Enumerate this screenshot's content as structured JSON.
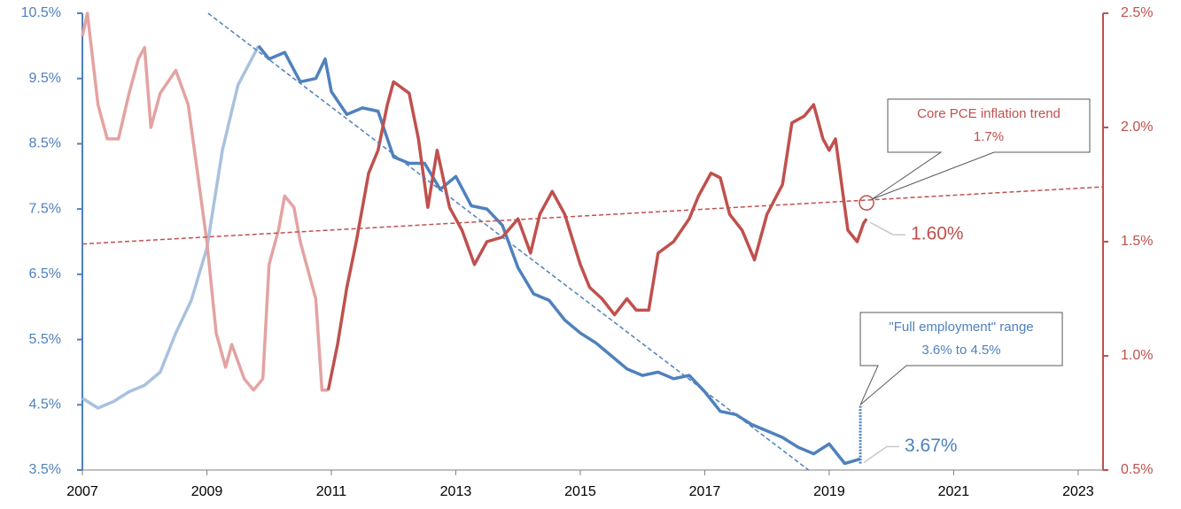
{
  "chart_data": {
    "type": "line",
    "xlim": [
      2007,
      2023.4
    ],
    "xticks": [
      2007,
      2009,
      2011,
      2013,
      2015,
      2017,
      2019,
      2021,
      2023
    ],
    "ylim": [
      3.5,
      10.5
    ],
    "yticks": [
      {
        "value": 3.5,
        "label": "3.5%"
      },
      {
        "value": 4.5,
        "label": "4.5%"
      },
      {
        "value": 5.5,
        "label": "5.5%"
      },
      {
        "value": 6.5,
        "label": "6.5%"
      },
      {
        "value": 7.5,
        "label": "7.5%"
      },
      {
        "value": 8.5,
        "label": "8.5%"
      },
      {
        "value": 9.5,
        "label": "9.5%"
      },
      {
        "value": 10.5,
        "label": "10.5%"
      }
    ],
    "y2lim": [
      0.5,
      2.5
    ],
    "y2ticks": [
      {
        "value": 0.5,
        "label": "0.5%"
      },
      {
        "value": 1.0,
        "label": "1.0%"
      },
      {
        "value": 1.5,
        "label": "1.5%"
      },
      {
        "value": 2.0,
        "label": "2.0%"
      },
      {
        "value": 2.5,
        "label": "2.5%"
      }
    ],
    "y_color": "#4f81bd",
    "y2_color": "#c0504d",
    "series": [
      {
        "color": "#a9c1df",
        "axis": "y",
        "x": [
          2007.0,
          2007.25,
          2007.5,
          2007.75,
          2008.0,
          2008.25,
          2008.5,
          2008.75,
          2009.0,
          2009.25,
          2009.5,
          2009.83
        ],
        "values": [
          4.6,
          4.45,
          4.55,
          4.7,
          4.8,
          5.0,
          5.6,
          6.1,
          6.9,
          8.4,
          9.4,
          10.0
        ]
      },
      {
        "color": "#4f81bd",
        "axis": "y",
        "x": [
          2009.83,
          2010.0,
          2010.25,
          2010.5,
          2010.75,
          2010.9,
          2011.0,
          2011.25,
          2011.5,
          2011.75,
          2012.0,
          2012.25,
          2012.5,
          2012.75,
          2013.0,
          2013.25,
          2013.5,
          2013.75,
          2014.0,
          2014.25,
          2014.5,
          2014.75,
          2015.0,
          2015.25,
          2015.5,
          2015.75,
          2016.0,
          2016.25,
          2016.5,
          2016.75,
          2017.0,
          2017.25,
          2017.5,
          2017.75,
          2018.0,
          2018.25,
          2018.5,
          2018.75,
          2019.0,
          2019.25,
          2019.5
        ],
        "values": [
          10.0,
          9.8,
          9.9,
          9.45,
          9.5,
          9.8,
          9.3,
          8.95,
          9.05,
          9.0,
          8.3,
          8.2,
          8.2,
          7.8,
          8.0,
          7.55,
          7.5,
          7.25,
          6.6,
          6.2,
          6.1,
          5.8,
          5.6,
          5.45,
          5.25,
          5.05,
          4.95,
          5.0,
          4.9,
          4.95,
          4.7,
          4.4,
          4.35,
          4.2,
          4.1,
          4.0,
          3.85,
          3.75,
          3.9,
          3.6,
          3.67
        ],
        "end_label": "3.67%"
      },
      {
        "color": "#e3a3a2",
        "axis": "y2",
        "x": [
          2007.0,
          2007.08,
          2007.25,
          2007.4,
          2007.58,
          2007.75,
          2007.9,
          2008.0,
          2008.1,
          2008.25,
          2008.5,
          2008.7,
          2008.85,
          2009.0,
          2009.15,
          2009.3,
          2009.4,
          2009.6,
          2009.75,
          2009.9,
          2010.0,
          2010.15,
          2010.25,
          2010.4,
          2010.5,
          2010.65,
          2010.75,
          2010.85,
          2010.95
        ],
        "values": [
          2.4,
          2.5,
          2.1,
          1.95,
          1.95,
          2.15,
          2.3,
          2.35,
          2.0,
          2.15,
          2.25,
          2.1,
          1.8,
          1.5,
          1.1,
          0.95,
          1.05,
          0.9,
          0.85,
          0.9,
          1.4,
          1.55,
          1.7,
          1.65,
          1.5,
          1.35,
          1.25,
          0.85,
          0.85
        ]
      },
      {
        "color": "#c0504d",
        "axis": "y2",
        "x": [
          2010.95,
          2011.1,
          2011.25,
          2011.4,
          2011.6,
          2011.75,
          2011.9,
          2012.0,
          2012.25,
          2012.4,
          2012.55,
          2012.7,
          2012.9,
          2013.1,
          2013.3,
          2013.5,
          2013.75,
          2014.0,
          2014.2,
          2014.35,
          2014.55,
          2014.75,
          2015.0,
          2015.15,
          2015.35,
          2015.55,
          2015.75,
          2015.9,
          2016.1,
          2016.25,
          2016.5,
          2016.75,
          2016.9,
          2017.1,
          2017.25,
          2017.4,
          2017.6,
          2017.8,
          2018.0,
          2018.25,
          2018.4,
          2018.6,
          2018.75,
          2018.9,
          2019.0,
          2019.1,
          2019.3,
          2019.45,
          2019.55,
          2019.6
        ],
        "values": [
          0.85,
          1.05,
          1.3,
          1.5,
          1.8,
          1.9,
          2.1,
          2.2,
          2.15,
          1.95,
          1.65,
          1.9,
          1.65,
          1.55,
          1.4,
          1.5,
          1.52,
          1.6,
          1.45,
          1.62,
          1.72,
          1.62,
          1.4,
          1.3,
          1.25,
          1.18,
          1.25,
          1.2,
          1.2,
          1.45,
          1.5,
          1.6,
          1.7,
          1.8,
          1.78,
          1.62,
          1.55,
          1.42,
          1.62,
          1.75,
          2.02,
          2.05,
          2.1,
          1.95,
          1.9,
          1.95,
          1.55,
          1.5,
          1.58,
          1.6
        ],
        "end_label": "1.60%"
      },
      {
        "color": "#4f81bd",
        "axis": "y",
        "dashed": true,
        "x": [
          2009.02,
          2018.67
        ],
        "values": [
          10.5,
          3.5
        ]
      },
      {
        "color": "#c0504d",
        "axis": "y2",
        "dashed": true,
        "x": [
          2007.0,
          2023.4
        ],
        "values": [
          1.49,
          1.74
        ]
      }
    ],
    "annotations": [
      {
        "lines": [
          "Core PCE inflation trend",
          "1.7%"
        ],
        "x": 2019.6,
        "y": 1.67,
        "axis": "y2",
        "color": "#c0504d"
      },
      {
        "lines": [
          "\"Full employment\" range",
          "3.6% to 4.5%"
        ],
        "x": 2019.5,
        "range": [
          3.6,
          4.5
        ],
        "axis": "y",
        "color": "#4f81bd"
      }
    ]
  }
}
